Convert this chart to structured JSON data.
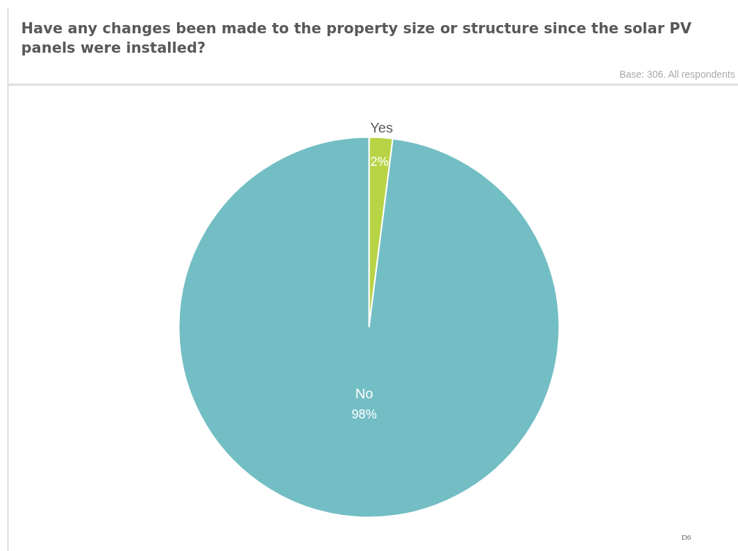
{
  "chart_data": {
    "type": "pie",
    "title": "Have any changes been made to the property size or structure since the solar PV panels were installed?",
    "annotations": [
      "Base: 306. All respondents",
      "D6"
    ],
    "categories": [
      "Yes",
      "No"
    ],
    "values": [
      2,
      98
    ],
    "colors": [
      "#b8d445",
      "#73bec4"
    ],
    "value_labels": [
      "2%",
      "98%"
    ]
  }
}
